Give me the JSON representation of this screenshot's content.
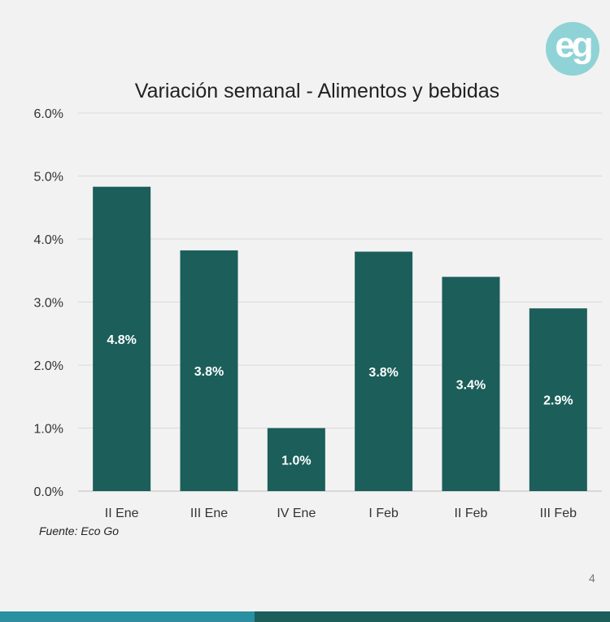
{
  "logo": {
    "text": "eg"
  },
  "source": "Fuente: Eco Go",
  "page_number": "4",
  "colors": {
    "bar": "#1b5e5a",
    "footer_left": "#2a8fa0",
    "footer_right": "#1b5e5a",
    "logo": "#8fd3d6"
  },
  "chart_data": {
    "type": "bar",
    "title": "Variación semanal - Alimentos y bebidas",
    "categories": [
      "II Ene",
      "III Ene",
      "IV Ene",
      "I Feb",
      "II Feb",
      "III Feb"
    ],
    "values": [
      4.83,
      3.82,
      1.0,
      3.8,
      3.4,
      2.9
    ],
    "data_labels": [
      "4.8%",
      "3.8%",
      "1.0%",
      "3.8%",
      "3.4%",
      "2.9%"
    ],
    "y_ticks": [
      "0.0%",
      "1.0%",
      "2.0%",
      "3.0%",
      "4.0%",
      "5.0%",
      "6.0%"
    ],
    "y_tick_values": [
      0,
      1,
      2,
      3,
      4,
      5,
      6
    ],
    "ylim": [
      0,
      6
    ],
    "grid": true,
    "legend": "none"
  }
}
